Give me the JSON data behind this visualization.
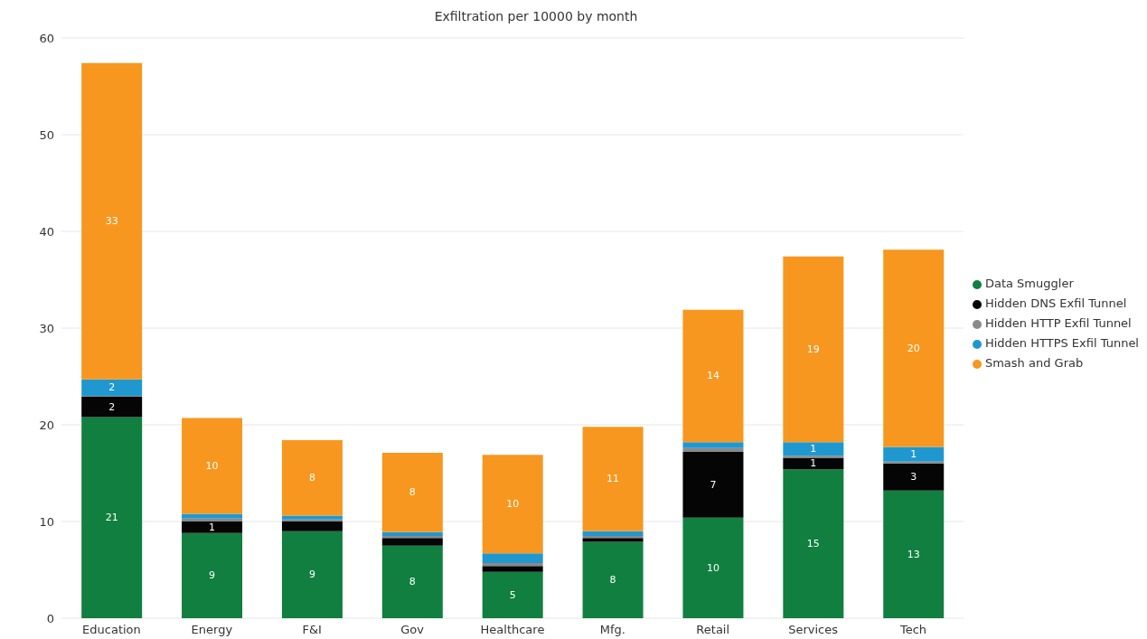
{
  "chart_data": {
    "type": "bar",
    "title": "Exfiltration per 10000 by month",
    "categories": [
      "Education",
      "Energy",
      "F&I",
      "Gov",
      "Healthcare",
      "Mfg.",
      "Retail",
      "Services",
      "Tech"
    ],
    "stacked": true,
    "series": [
      {
        "name": "Data Smuggler",
        "color": "#107f40",
        "values": [
          20.8,
          8.8,
          9.0,
          7.5,
          4.8,
          7.9,
          10.4,
          15.4,
          13.2
        ],
        "value_labels": [
          "21",
          "9",
          "9",
          "8",
          "5",
          "8",
          "10",
          "15",
          "13"
        ]
      },
      {
        "name": "Hidden DNS Exfil Tunnel",
        "color": "#050505",
        "values": [
          2.1,
          1.2,
          1.0,
          0.8,
          0.6,
          0.4,
          6.8,
          1.2,
          2.8
        ],
        "value_labels": [
          "2",
          "1",
          null,
          null,
          null,
          null,
          "7",
          "1",
          "3"
        ]
      },
      {
        "name": "Hidden HTTP Exfil Tunnel",
        "color": "#8a8a8a",
        "values": [
          0.1,
          0.3,
          0.2,
          0.2,
          0.3,
          0.2,
          0.4,
          0.2,
          0.2
        ],
        "value_labels": [
          null,
          null,
          null,
          null,
          null,
          null,
          null,
          null,
          null
        ]
      },
      {
        "name": "Hidden HTTPS Exfil Tunnel",
        "color": "#1f98d0",
        "values": [
          1.7,
          0.5,
          0.4,
          0.4,
          1.0,
          0.5,
          0.6,
          1.4,
          1.5
        ],
        "value_labels": [
          "2",
          null,
          null,
          null,
          null,
          null,
          null,
          "1",
          "1"
        ]
      },
      {
        "name": "Smash and Grab",
        "color": "#f7971f",
        "values": [
          32.7,
          9.9,
          7.8,
          8.2,
          10.2,
          10.8,
          13.7,
          19.2,
          20.4
        ],
        "value_labels": [
          "33",
          "10",
          "8",
          "8",
          "10",
          "11",
          "14",
          "19",
          "20"
        ]
      }
    ],
    "ylim": [
      0,
      60
    ],
    "yticks": [
      0,
      10,
      20,
      30,
      40,
      50,
      60
    ],
    "grid": "y",
    "legend": "right"
  }
}
